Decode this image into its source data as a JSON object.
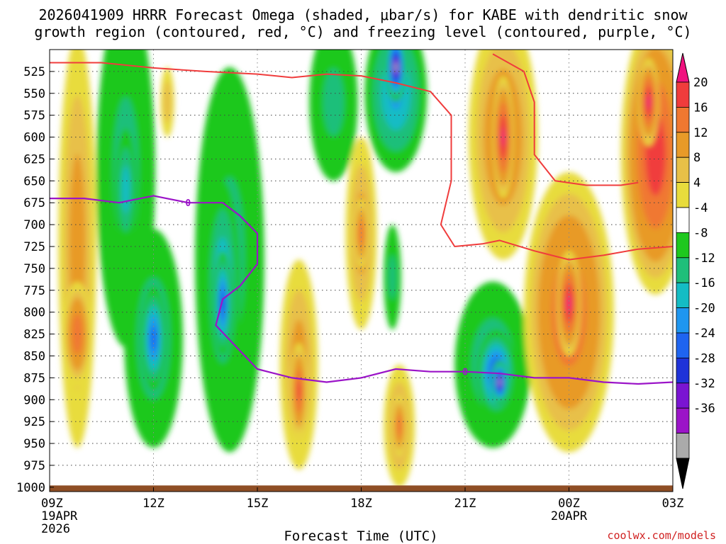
{
  "title_line1": "2026041909 HRRR Forecast Omega (shaded, μbar/s) for KABE with dendritic snow",
  "title_line2": "growth region (contoured, red, °C) and freezing level (contoured, purple, °C)",
  "credit": "coolwx.com/models",
  "chart_data": {
    "type": "heatmap",
    "xlabel": "Forecast Time (UTC)",
    "ylabel": "",
    "y_axis": {
      "units": "mb",
      "inverted": true,
      "range": [
        500,
        1005
      ],
      "ticks": [
        525,
        550,
        575,
        600,
        625,
        650,
        675,
        700,
        725,
        750,
        775,
        800,
        825,
        850,
        875,
        900,
        925,
        950,
        975,
        1000
      ]
    },
    "x_axis": {
      "range": [
        9,
        27
      ],
      "ticks": [
        {
          "x": 9,
          "label": "09Z",
          "sub1": "19APR",
          "sub2": "2026"
        },
        {
          "x": 12,
          "label": "12Z"
        },
        {
          "x": 15,
          "label": "15Z"
        },
        {
          "x": 18,
          "label": "18Z"
        },
        {
          "x": 21,
          "label": "21Z"
        },
        {
          "x": 24,
          "label": "00Z",
          "sub1": "20APR"
        },
        {
          "x": 27,
          "label": "03Z"
        }
      ]
    },
    "grid": true,
    "colorbar": {
      "labels": [
        20,
        16,
        12,
        8,
        4,
        -4,
        -8,
        -12,
        -16,
        -20,
        -24,
        -28,
        -32,
        -36
      ],
      "colors": [
        "#f0127f",
        "#f03c3c",
        "#f07830",
        "#e89a28",
        "#e8c048",
        "#e8dc3c",
        "#ffffff",
        "#1ec81e",
        "#1fbf7a",
        "#14bcc4",
        "#1e96f0",
        "#1e64f0",
        "#1e32d8",
        "#7a14d2",
        "#9b14c8",
        "#aaaaaa",
        "#000000"
      ]
    },
    "omega_blobs": [
      {
        "x": 9.8,
        "p": 720,
        "rx": 0.55,
        "rp": 235,
        "v": 8
      },
      {
        "x": 9.8,
        "p": 825,
        "rx": 0.4,
        "rp": 60,
        "v": 14
      },
      {
        "x": 11.2,
        "p": 640,
        "rx": 0.85,
        "rp": 200,
        "v": -8
      },
      {
        "x": 11.2,
        "p": 660,
        "rx": 0.3,
        "rp": 70,
        "v": -14
      },
      {
        "x": 12.0,
        "p": 830,
        "rx": 0.85,
        "rp": 125,
        "v": -10
      },
      {
        "x": 12.0,
        "p": 830,
        "rx": 0.35,
        "rp": 60,
        "v": -22
      },
      {
        "x": 12.4,
        "p": 560,
        "rx": 0.2,
        "rp": 40,
        "v": 6
      },
      {
        "x": 14.2,
        "p": 740,
        "rx": 1.0,
        "rp": 220,
        "v": -8
      },
      {
        "x": 14.0,
        "p": 770,
        "rx": 0.5,
        "rp": 120,
        "v": -16
      },
      {
        "x": 14.0,
        "p": 790,
        "rx": 0.25,
        "rp": 60,
        "v": -24
      },
      {
        "x": 16.2,
        "p": 860,
        "rx": 0.55,
        "rp": 120,
        "v": 8
      },
      {
        "x": 16.2,
        "p": 890,
        "rx": 0.25,
        "rp": 55,
        "v": 16
      },
      {
        "x": 17.2,
        "p": 560,
        "rx": 0.7,
        "rp": 90,
        "v": -8
      },
      {
        "x": 18.0,
        "p": 710,
        "rx": 0.45,
        "rp": 110,
        "v": 8
      },
      {
        "x": 18.0,
        "p": 710,
        "rx": 0.2,
        "rp": 40,
        "v": 14
      },
      {
        "x": 19.0,
        "p": 550,
        "rx": 0.9,
        "rp": 90,
        "v": -16
      },
      {
        "x": 19.0,
        "p": 520,
        "rx": 0.3,
        "rp": 40,
        "v": -34
      },
      {
        "x": 18.9,
        "p": 760,
        "rx": 0.25,
        "rp": 60,
        "v": -8
      },
      {
        "x": 19.1,
        "p": 930,
        "rx": 0.45,
        "rp": 70,
        "v": 8
      },
      {
        "x": 19.1,
        "p": 930,
        "rx": 0.2,
        "rp": 35,
        "v": 14
      },
      {
        "x": 21.8,
        "p": 860,
        "rx": 1.1,
        "rp": 95,
        "v": -10
      },
      {
        "x": 21.9,
        "p": 870,
        "rx": 0.55,
        "rp": 50,
        "v": -26
      },
      {
        "x": 22.0,
        "p": 880,
        "rx": 0.25,
        "rp": 25,
        "v": -34
      },
      {
        "x": 22.1,
        "p": 600,
        "rx": 1.0,
        "rp": 140,
        "v": 10
      },
      {
        "x": 22.1,
        "p": 600,
        "rx": 0.3,
        "rp": 70,
        "v": 20
      },
      {
        "x": 24.0,
        "p": 800,
        "rx": 1.3,
        "rp": 160,
        "v": 14
      },
      {
        "x": 24.0,
        "p": 790,
        "rx": 0.35,
        "rp": 60,
        "v": 20
      },
      {
        "x": 26.5,
        "p": 620,
        "rx": 1.0,
        "rp": 160,
        "v": 18
      },
      {
        "x": 26.3,
        "p": 560,
        "rx": 0.3,
        "rp": 50,
        "v": 20
      }
    ],
    "dgz_contours": [
      {
        "name": "dgz-top",
        "points": [
          [
            9.0,
            515
          ],
          [
            10.5,
            515
          ],
          [
            12.0,
            521
          ],
          [
            13.5,
            525
          ],
          [
            15.0,
            528
          ],
          [
            16.0,
            532
          ],
          [
            17.0,
            528
          ],
          [
            18.0,
            530
          ],
          [
            19.0,
            538
          ],
          [
            20.0,
            548
          ],
          [
            20.6,
            575
          ],
          [
            20.6,
            650
          ],
          [
            20.3,
            700
          ],
          [
            20.7,
            725
          ]
        ]
      },
      {
        "name": "dgz-right",
        "points": [
          [
            21.8,
            505
          ],
          [
            22.7,
            525
          ],
          [
            23.0,
            560
          ],
          [
            23.0,
            620
          ],
          [
            23.6,
            650
          ],
          [
            24.5,
            655
          ],
          [
            25.5,
            655
          ],
          [
            26.0,
            652
          ]
        ]
      },
      {
        "name": "dgz-bottom",
        "points": [
          [
            20.7,
            725
          ],
          [
            21.5,
            722
          ],
          [
            22.0,
            718
          ],
          [
            23.0,
            730
          ],
          [
            24.0,
            740
          ],
          [
            25.0,
            735
          ],
          [
            26.0,
            728
          ],
          [
            27.0,
            725
          ]
        ]
      }
    ],
    "freezing_level": {
      "label": "0",
      "points": [
        [
          9.0,
          670
        ],
        [
          10.0,
          670
        ],
        [
          11.0,
          675
        ],
        [
          12.0,
          667
        ],
        [
          13.0,
          675
        ],
        [
          14.0,
          675
        ],
        [
          14.5,
          690
        ],
        [
          15.0,
          710
        ],
        [
          15.0,
          745
        ],
        [
          14.5,
          770
        ],
        [
          14.0,
          785
        ],
        [
          13.8,
          815
        ],
        [
          14.4,
          840
        ],
        [
          15.0,
          865
        ],
        [
          16.0,
          875
        ],
        [
          17.0,
          880
        ],
        [
          18.0,
          875
        ],
        [
          19.0,
          865
        ],
        [
          20.0,
          868
        ],
        [
          21.0,
          868
        ],
        [
          22.0,
          870
        ],
        [
          23.0,
          875
        ],
        [
          24.0,
          875
        ],
        [
          25.0,
          880
        ],
        [
          26.0,
          882
        ],
        [
          27.0,
          880
        ]
      ]
    },
    "terrain_pressure_mb": 1000
  }
}
